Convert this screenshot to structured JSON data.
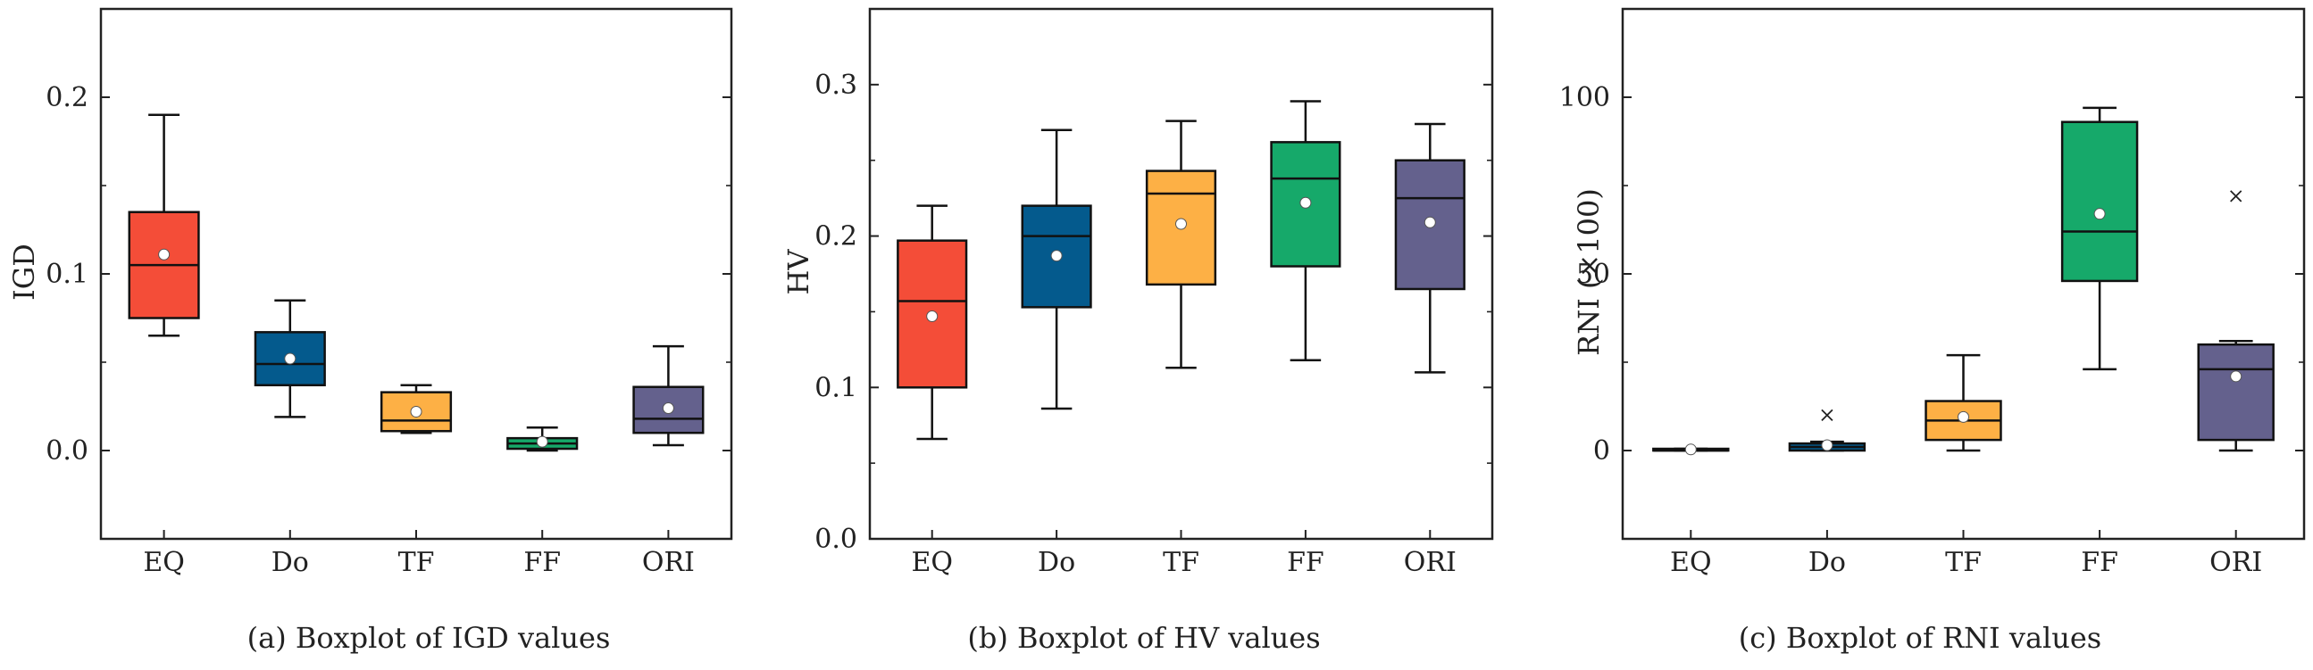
{
  "chart_data": [
    {
      "type": "boxplot",
      "caption": "(a) Boxplot of IGD values",
      "ylabel": "IGD",
      "ylim": [
        -0.05,
        0.25
      ],
      "yticks": [
        0.0,
        0.1,
        0.2
      ],
      "ytick_labels": [
        "0.0",
        "0.1",
        "0.2"
      ],
      "categories": [
        "EQ",
        "Do",
        "TF",
        "FF",
        "ORI"
      ],
      "boxes": [
        {
          "whisker_low": 0.065,
          "q1": 0.075,
          "median": 0.105,
          "q3": 0.135,
          "whisker_high": 0.19,
          "mean": 0.111,
          "color": "#F44D38",
          "outliers": []
        },
        {
          "whisker_low": 0.019,
          "q1": 0.037,
          "median": 0.049,
          "q3": 0.067,
          "whisker_high": 0.085,
          "mean": 0.052,
          "color": "#045A8D",
          "outliers": []
        },
        {
          "whisker_low": 0.01,
          "q1": 0.011,
          "median": 0.017,
          "q3": 0.033,
          "whisker_high": 0.037,
          "mean": 0.022,
          "color": "#FDB045",
          "outliers": []
        },
        {
          "whisker_low": 0.0,
          "q1": 0.001,
          "median": 0.004,
          "q3": 0.007,
          "whisker_high": 0.013,
          "mean": 0.005,
          "color": "#16A96A",
          "outliers": []
        },
        {
          "whisker_low": 0.003,
          "q1": 0.01,
          "median": 0.018,
          "q3": 0.036,
          "whisker_high": 0.059,
          "mean": 0.024,
          "color": "#64618D",
          "outliers": []
        }
      ]
    },
    {
      "type": "boxplot",
      "caption": "(b) Boxplot of HV values",
      "ylabel": "HV",
      "ylim": [
        0.0,
        0.35
      ],
      "yticks": [
        0.0,
        0.1,
        0.2,
        0.3
      ],
      "ytick_labels": [
        "0.0",
        "0.1",
        "0.2",
        "0.3"
      ],
      "categories": [
        "EQ",
        "Do",
        "TF",
        "FF",
        "ORI"
      ],
      "boxes": [
        {
          "whisker_low": 0.066,
          "q1": 0.1,
          "median": 0.157,
          "q3": 0.197,
          "whisker_high": 0.22,
          "mean": 0.147,
          "color": "#F44D38",
          "outliers": []
        },
        {
          "whisker_low": 0.086,
          "q1": 0.153,
          "median": 0.2,
          "q3": 0.22,
          "whisker_high": 0.27,
          "mean": 0.187,
          "color": "#045A8D",
          "outliers": []
        },
        {
          "whisker_low": 0.113,
          "q1": 0.168,
          "median": 0.228,
          "q3": 0.243,
          "whisker_high": 0.276,
          "mean": 0.208,
          "color": "#FDB045",
          "outliers": []
        },
        {
          "whisker_low": 0.118,
          "q1": 0.18,
          "median": 0.238,
          "q3": 0.262,
          "whisker_high": 0.289,
          "mean": 0.222,
          "color": "#16A96A",
          "outliers": []
        },
        {
          "whisker_low": 0.11,
          "q1": 0.165,
          "median": 0.225,
          "q3": 0.25,
          "whisker_high": 0.274,
          "mean": 0.209,
          "color": "#64618D",
          "outliers": []
        }
      ]
    },
    {
      "type": "boxplot",
      "caption": "(c) Boxplot of RNI values",
      "ylabel": "RNI (×100)",
      "ylim": [
        -25,
        125
      ],
      "yticks": [
        0,
        50,
        100
      ],
      "ytick_labels": [
        "0",
        "50",
        "100"
      ],
      "categories": [
        "EQ",
        "Do",
        "TF",
        "FF",
        "ORI"
      ],
      "boxes": [
        {
          "whisker_low": 0,
          "q1": 0,
          "median": 0,
          "q3": 0.5,
          "whisker_high": 0.5,
          "mean": 0.3,
          "color": "#F44D38",
          "outliers": []
        },
        {
          "whisker_low": 0,
          "q1": 0,
          "median": 1,
          "q3": 2,
          "whisker_high": 2.5,
          "mean": 1.5,
          "color": "#045A8D",
          "outliers": [
            10
          ]
        },
        {
          "whisker_low": 0,
          "q1": 3,
          "median": 8.5,
          "q3": 14,
          "whisker_high": 27,
          "mean": 9.5,
          "color": "#FDB045",
          "outliers": []
        },
        {
          "whisker_low": 23,
          "q1": 48,
          "median": 62,
          "q3": 93,
          "whisker_high": 97,
          "mean": 67,
          "color": "#16A96A",
          "outliers": []
        },
        {
          "whisker_low": 0,
          "q1": 3,
          "median": 23,
          "q3": 30,
          "whisker_high": 31,
          "mean": 21,
          "color": "#64618D",
          "outliers": [
            72
          ]
        }
      ]
    }
  ]
}
